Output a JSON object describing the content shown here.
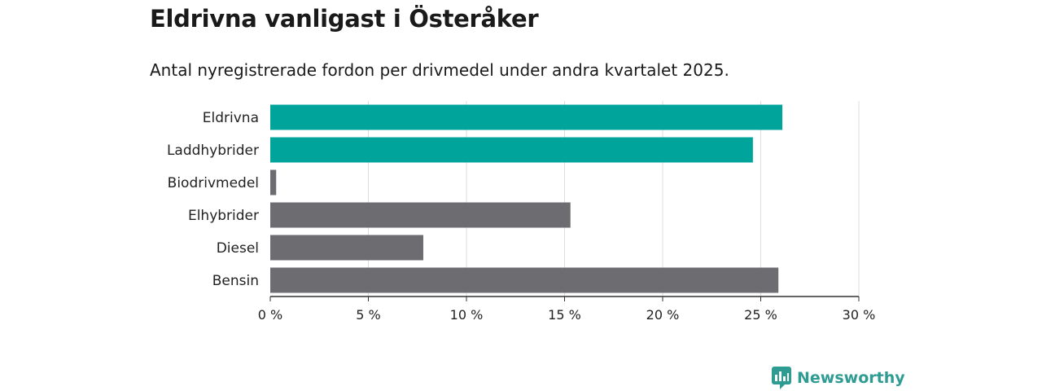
{
  "title": "Eldrivna vanligast i Österåker",
  "subtitle": "Antal nyregistrerade fordon per drivmedel under andra kvartalet 2025.",
  "brand": {
    "name": "Newsworthy",
    "icon": "newsworthy-logo-icon",
    "color": "#2f9c93"
  },
  "chart_data": {
    "type": "bar",
    "orientation": "horizontal",
    "categories": [
      "Eldrivna",
      "Laddhybrider",
      "Biodrivmedel",
      "Elhybrider",
      "Diesel",
      "Bensin"
    ],
    "values": [
      26.1,
      24.6,
      0.3,
      15.3,
      7.8,
      25.9
    ],
    "colors": [
      "#00a49a",
      "#00a49a",
      "#6d6c71",
      "#6d6c71",
      "#6d6c71",
      "#6d6c71"
    ],
    "xlim": [
      0,
      30
    ],
    "xticks": [
      0,
      5,
      10,
      15,
      20,
      25,
      30
    ],
    "xtick_labels": [
      "0 %",
      "5 %",
      "10 %",
      "15 %",
      "20 %",
      "25 %",
      "30 %"
    ],
    "grid": true,
    "legend": "none"
  }
}
